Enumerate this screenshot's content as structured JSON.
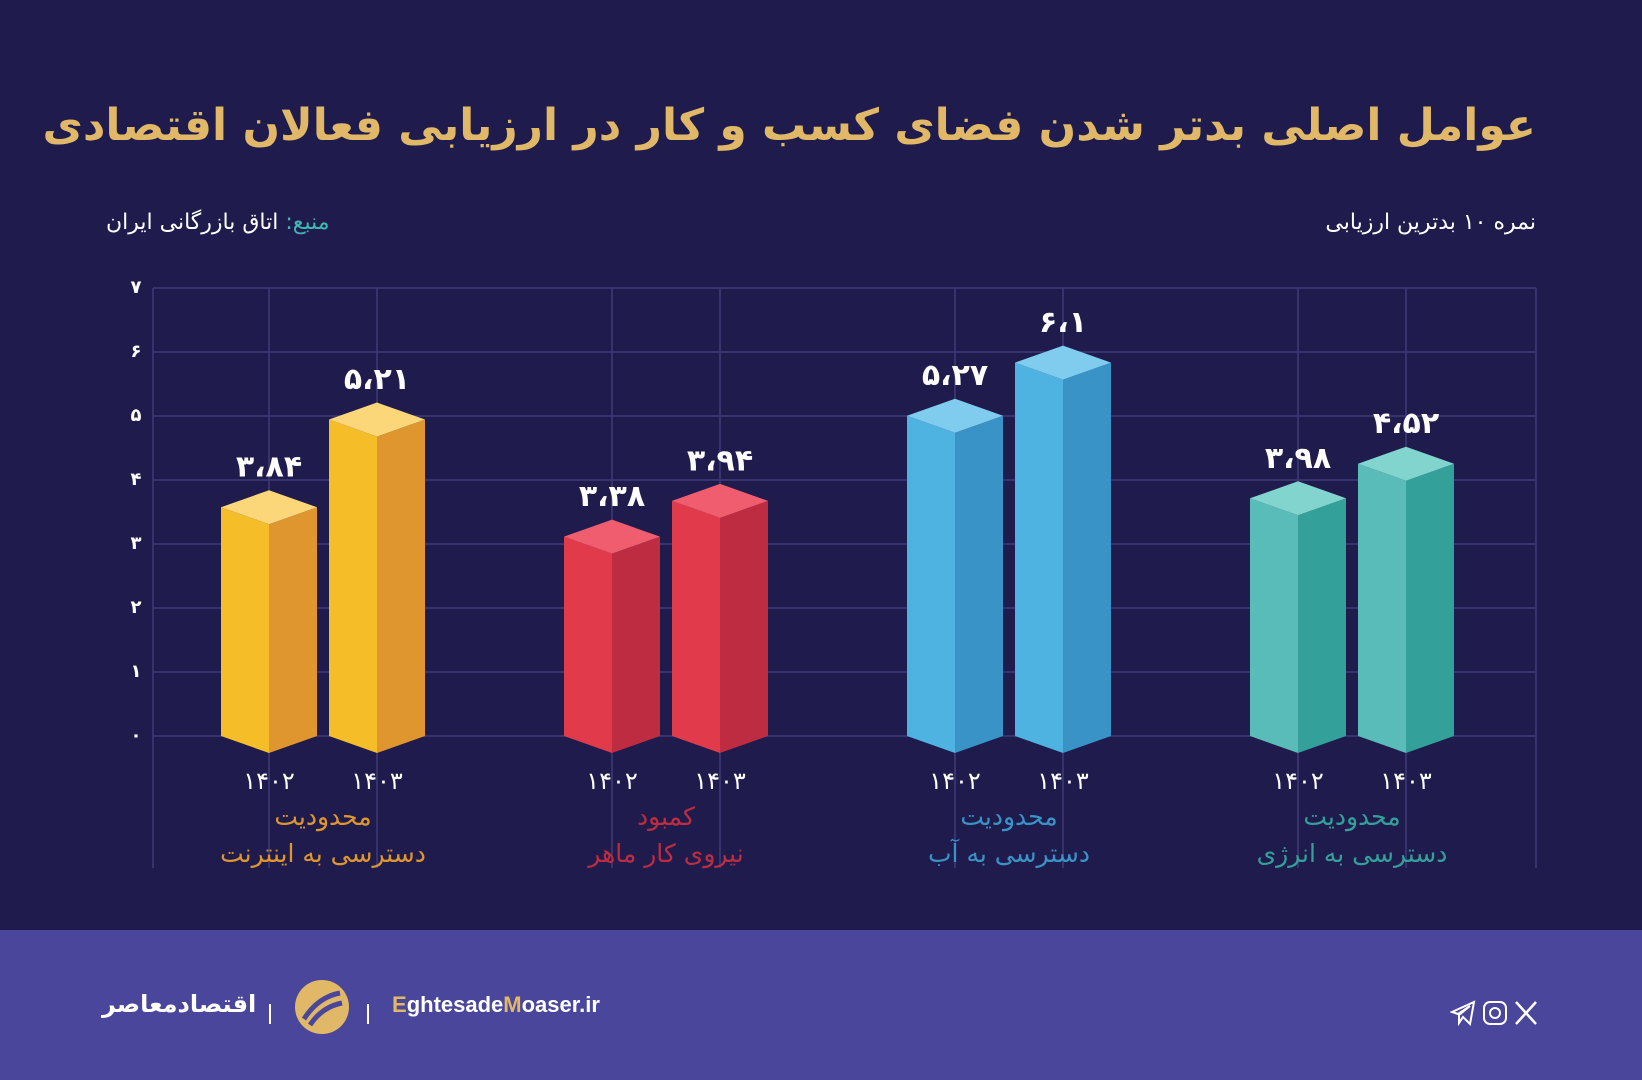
{
  "chart_data": {
    "type": "bar3d",
    "title": "عوامل اصلی بدتر شدن فضای کسب و کار در ارزیابی فعالان اقتصادی",
    "subtitle": "نمره ۱۰ بدترین ارزیابی",
    "source_label": "منبع:",
    "source": "اتاق بازرگانی ایران",
    "categories": [
      [
        "محدودیت",
        "دسترسی به اینترنت"
      ],
      [
        "کمبود",
        "نیروی کار ماهر"
      ],
      [
        "محدودیت",
        "دسترسی به آب"
      ],
      [
        "محدودیت",
        "دسترسی به انرژی"
      ]
    ],
    "category_colors": [
      [
        "#f5bd28",
        "#e0962e",
        "#fcd77a"
      ],
      [
        "#e03a4b",
        "#bd2c40",
        "#f05d6e"
      ],
      [
        "#4fb3e2",
        "#3a93c6",
        "#80ccef"
      ],
      [
        "#5abcb8",
        "#33a09a",
        "#82d4ce"
      ]
    ],
    "series": [
      {
        "name": "۱۴۰۲",
        "values": [
          3.84,
          3.38,
          5.27,
          3.98
        ],
        "value_labels": [
          "۳،۸۴",
          "۳،۳۸",
          "۵،۲۷",
          "۳،۹۸"
        ]
      },
      {
        "name": "۱۴۰۳",
        "values": [
          5.21,
          3.94,
          6.1,
          4.52
        ],
        "value_labels": [
          "۵،۲۱",
          "۳،۹۴",
          "۶،۱",
          "۴،۵۲"
        ]
      }
    ],
    "ylim": [
      0,
      7
    ],
    "yticks": [
      {
        "value": 0,
        "label": "۰"
      },
      {
        "value": 1,
        "label": "۱"
      },
      {
        "value": 2,
        "label": "۲"
      },
      {
        "value": 3,
        "label": "۳"
      },
      {
        "value": 4,
        "label": "۴"
      },
      {
        "value": 5,
        "label": "۵"
      },
      {
        "value": 6,
        "label": "۶"
      },
      {
        "value": 7,
        "label": "۷"
      }
    ],
    "grid": true
  },
  "footer": {
    "brand": "اقتصادمعاصر",
    "site_parts": [
      "E",
      "ghtesade",
      "M",
      "oaser.ir"
    ]
  }
}
